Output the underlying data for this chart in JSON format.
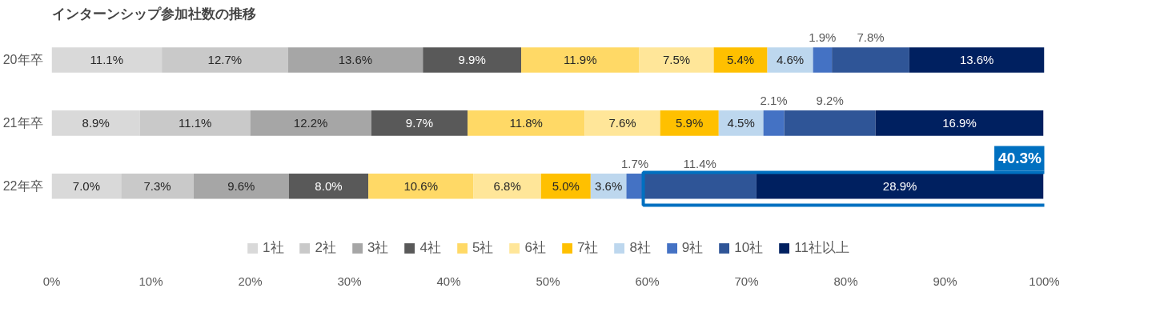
{
  "chart_data": {
    "type": "bar",
    "orientation": "horizontal",
    "stacked": true,
    "title": "インターンシップ参加社数の推移",
    "categories": [
      "20年卒",
      "21年卒",
      "22年卒"
    ],
    "series": [
      {
        "name": "1社",
        "color": "#d9d9d9",
        "values": [
          11.1,
          8.9,
          7.0
        ],
        "value_labels": [
          "11.1%",
          "8.9%",
          "7.0%"
        ]
      },
      {
        "name": "2社",
        "color": "#c9c9c9",
        "values": [
          12.7,
          11.1,
          7.3
        ],
        "value_labels": [
          "12.7%",
          "11.1%",
          "7.3%"
        ]
      },
      {
        "name": "3社",
        "color": "#a6a6a6",
        "values": [
          13.6,
          12.2,
          9.6
        ],
        "value_labels": [
          "13.6%",
          "12.2%",
          "9.6%"
        ]
      },
      {
        "name": "4社",
        "color": "#595959",
        "values": [
          9.9,
          9.7,
          8.0
        ],
        "value_labels": [
          "9.9%",
          "9.7%",
          "8.0%"
        ]
      },
      {
        "name": "5社",
        "color": "#ffd966",
        "values": [
          11.9,
          11.8,
          10.6
        ],
        "value_labels": [
          "11.9%",
          "11.8%",
          "10.6%"
        ]
      },
      {
        "name": "6社",
        "color": "#ffe699",
        "values": [
          7.5,
          7.6,
          6.8
        ],
        "value_labels": [
          "7.5%",
          "7.6%",
          "6.8%"
        ]
      },
      {
        "name": "7社",
        "color": "#ffc000",
        "values": [
          5.4,
          5.9,
          5.0
        ],
        "value_labels": [
          "5.4%",
          "5.9%",
          "5.0%"
        ]
      },
      {
        "name": "8社",
        "color": "#bdd7ee",
        "values": [
          4.6,
          4.5,
          3.6
        ],
        "value_labels": [
          "4.6%",
          "4.5%",
          "3.6%"
        ]
      },
      {
        "name": "9社",
        "color": "#4472c4",
        "values": [
          1.9,
          2.1,
          1.7
        ],
        "value_labels": [
          "1.9%",
          "2.1%",
          "1.7%"
        ]
      },
      {
        "name": "10社",
        "color": "#2f5597",
        "values": [
          7.8,
          9.2,
          11.4
        ],
        "value_labels": [
          "7.8%",
          "9.2%",
          "11.4%"
        ]
      },
      {
        "name": "11社以上",
        "color": "#002060",
        "values": [
          13.6,
          16.9,
          28.9
        ],
        "value_labels": [
          "13.6%",
          "16.9%",
          "28.9%"
        ]
      }
    ],
    "xlim": [
      0,
      100
    ],
    "xticks": [
      {
        "value": 0,
        "label": "0%"
      },
      {
        "value": 10,
        "label": "10%"
      },
      {
        "value": 20,
        "label": "20%"
      },
      {
        "value": 30,
        "label": "30%"
      },
      {
        "value": 40,
        "label": "40%"
      },
      {
        "value": 50,
        "label": "50%"
      },
      {
        "value": 60,
        "label": "60%"
      },
      {
        "value": 70,
        "label": "70%"
      },
      {
        "value": 80,
        "label": "80%"
      },
      {
        "value": 90,
        "label": "90%"
      },
      {
        "value": 100,
        "label": "100%"
      }
    ],
    "annotations": [
      {
        "text": "40.3%",
        "x": 100,
        "y": "22年卒"
      }
    ],
    "grid": false,
    "legend": "bottom"
  }
}
